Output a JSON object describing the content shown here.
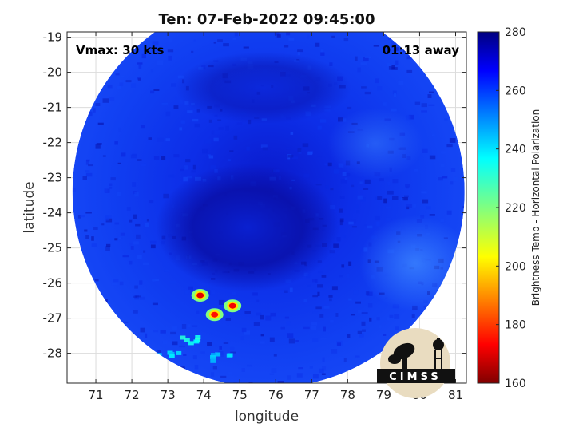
{
  "chart_data": {
    "type": "heatmap",
    "title": "Ten: 07-Feb-2022 09:45:00",
    "xlabel": "longitude",
    "ylabel": "latitude",
    "xlim": [
      70.2,
      81.3
    ],
    "ylim": [
      -28.85,
      -18.85
    ],
    "xticks": [
      71,
      72,
      73,
      74,
      75,
      76,
      77,
      78,
      79,
      80,
      81
    ],
    "yticks": [
      -19,
      -20,
      -21,
      -22,
      -23,
      -24,
      -25,
      -26,
      -27,
      -28
    ],
    "grid": true,
    "annotations": {
      "vmax": "Vmax: 30 kts",
      "time_away": "01:13 away"
    },
    "colorbar": {
      "label": "Brightness Temp - Horizontal Polarization",
      "min": 160,
      "max": 280,
      "ticks": [
        280,
        260,
        240,
        220,
        200,
        180,
        160
      ],
      "colormap": "jet"
    },
    "swath": {
      "center": [
        75.8,
        -23.4
      ],
      "radius_deg": 5.45,
      "lat_cut": -28.85
    },
    "features": [
      {
        "name": "cold spot",
        "lon": 73.9,
        "lat": -26.35,
        "value": 170
      },
      {
        "name": "cold spot",
        "lon": 74.8,
        "lat": -26.65,
        "value": 172
      },
      {
        "name": "cold spot",
        "lon": 74.3,
        "lat": -26.9,
        "value": 175
      },
      {
        "name": "convective band",
        "lon": 73.5,
        "lat": -27.6,
        "value": 235
      },
      {
        "name": "convective band",
        "lon": 73.0,
        "lat": -28.0,
        "value": 240
      },
      {
        "name": "convective band",
        "lon": 74.4,
        "lat": -28.1,
        "value": 245
      }
    ]
  },
  "logo": {
    "text": "CIMSS"
  },
  "colors": {
    "background": "#0b2cf0",
    "deep": "#0a12b0",
    "light": "#2a6cff"
  }
}
